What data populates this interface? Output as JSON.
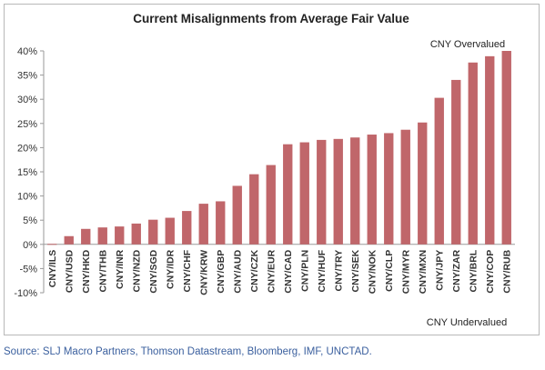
{
  "chart_data": {
    "type": "bar",
    "title": "Current Misalignments from Average Fair Value",
    "xlabel": "",
    "ylabel": "",
    "ylim": [
      -10,
      40
    ],
    "yticks": [
      "-10%",
      "-5%",
      "0%",
      "5%",
      "10%",
      "15%",
      "20%",
      "25%",
      "30%",
      "35%",
      "40%"
    ],
    "grid": false,
    "bar_color": "#c0666a",
    "categories": [
      "CNY/ILS",
      "CNY/USD",
      "CNY/HKD",
      "CNY/THB",
      "CNY/INR",
      "CNY/NZD",
      "CNY/SGD",
      "CNY/IDR",
      "CNY/CHF",
      "CNY/KRW",
      "CNY/GBP",
      "CNY/AUD",
      "CNY/CZK",
      "CNY/EUR",
      "CNY/CAD",
      "CNY/PLN",
      "CNY/HUF",
      "CNY/TRY",
      "CNY/SEK",
      "CNY/NOK",
      "CNY/CLP",
      "CNY/MYR",
      "CNY/MXN",
      "CNY/JPY",
      "CNY/ZAR",
      "CNY/BRL",
      "CNY/COP",
      "CNY/RUB"
    ],
    "values": [
      0.1,
      1.7,
      3.2,
      3.5,
      3.7,
      4.3,
      5.1,
      5.5,
      6.9,
      8.4,
      8.9,
      12.1,
      14.5,
      16.4,
      20.7,
      21.1,
      21.6,
      21.8,
      22.1,
      22.7,
      23.0,
      23.7,
      25.2,
      30.3,
      34.0,
      37.6,
      38.9,
      40.0
    ],
    "annotations": [
      "CNY Overvalued",
      "CNY Undervalued"
    ]
  },
  "source": "Source: SLJ Macro Partners, Thomson Datastream, Bloomberg, IMF, UNCTAD."
}
